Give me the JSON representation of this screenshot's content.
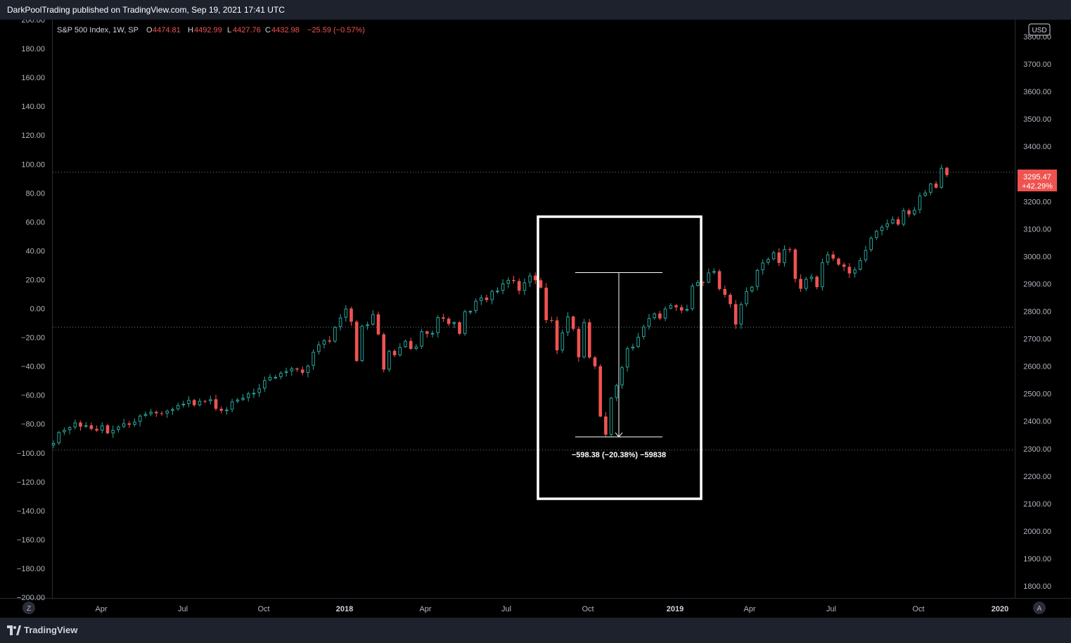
{
  "header": {
    "published": "DarkPoolTrading published on TradingView.com, Sep 19, 2021 17:41 UTC"
  },
  "footer": {
    "logo_text": "TradingView"
  },
  "legend": {
    "symbol": "S&P 500 Index, 1W, SP",
    "o_label": "O",
    "o_value": "4474.81",
    "h_label": "H",
    "h_value": "4492.99",
    "l_label": "L",
    "l_value": "4427.76",
    "c_label": "C",
    "c_value": "4432.98",
    "change": "−25.59 (−0.57%)"
  },
  "currency": "USD",
  "price_badge": {
    "price": "3295.47",
    "pct": "+42.29%"
  },
  "measure_label": "−598.38 (−20.38%) −59838",
  "scale_buttons": {
    "left": "Z",
    "right": "A"
  },
  "colors": {
    "up": "#26a69a",
    "down": "#ef5350",
    "background": "#000000",
    "panel": "#1e222d",
    "text": "#d1d4dc"
  },
  "chart_data": {
    "type": "candlestick",
    "title": "S&P 500 Index, 1W, SP",
    "left_axis": {
      "ticks": [
        "200.00",
        "180.00",
        "160.00",
        "140.00",
        "120.00",
        "100.00",
        "80.00",
        "60.00",
        "40.00",
        "20.00",
        "0.00",
        "−20.00",
        "−40.00",
        "−60.00",
        "−80.00",
        "−100.00",
        "−120.00",
        "−140.00",
        "−160.00",
        "−180.00",
        "−200.00"
      ],
      "range": [
        -200,
        200
      ]
    },
    "right_axis": {
      "ticks": [
        "3800.00",
        "3700.00",
        "3600.00",
        "3500.00",
        "3400.00",
        "3300.00",
        "3200.00",
        "3100.00",
        "3000.00",
        "2900.00",
        "2800.00",
        "2700.00",
        "2600.00",
        "2500.00",
        "2400.00",
        "2300.00",
        "2200.00",
        "2100.00",
        "2000.00",
        "1900.00",
        "1800.00"
      ],
      "range": [
        1740,
        3850
      ]
    },
    "x_ticks": [
      {
        "label": "Apr",
        "bold": false
      },
      {
        "label": "Jul",
        "bold": false
      },
      {
        "label": "Oct",
        "bold": false
      },
      {
        "label": "2018",
        "bold": true
      },
      {
        "label": "Apr",
        "bold": false
      },
      {
        "label": "Jul",
        "bold": false
      },
      {
        "label": "Oct",
        "bold": false
      },
      {
        "label": "2019",
        "bold": true
      },
      {
        "label": "Apr",
        "bold": false
      },
      {
        "label": "Jul",
        "bold": false
      },
      {
        "label": "Oct",
        "bold": false
      },
      {
        "label": "2020",
        "bold": true
      }
    ],
    "reference_lines": [
      3306,
      2742,
      2295
    ],
    "measure": {
      "high": 2941,
      "low": 2343
    },
    "closes": [
      2320,
      2360,
      2368,
      2378,
      2395,
      2380,
      2385,
      2372,
      2366,
      2385,
      2356,
      2368,
      2380,
      2392,
      2387,
      2398,
      2420,
      2426,
      2434,
      2429,
      2428,
      2438,
      2444,
      2458,
      2463,
      2477,
      2458,
      2474,
      2473,
      2480,
      2445,
      2438,
      2442,
      2472,
      2478,
      2485,
      2501,
      2503,
      2519,
      2549,
      2561,
      2561,
      2576,
      2582,
      2592,
      2588,
      2576,
      2602,
      2652,
      2679,
      2694,
      2690,
      2743,
      2777,
      2810,
      2762,
      2619,
      2747,
      2752,
      2789,
      2716,
      2588,
      2656,
      2640,
      2670,
      2692,
      2663,
      2672,
      2727,
      2718,
      2721,
      2778,
      2773,
      2754,
      2760,
      2718,
      2800,
      2801,
      2838,
      2850,
      2841,
      2874,
      2875,
      2901,
      2914,
      2910,
      2875,
      2905,
      2930,
      2913,
      2886,
      2768,
      2767,
      2658,
      2723,
      2781,
      2736,
      2633,
      2760,
      2632,
      2600,
      2417,
      2351,
      2485,
      2531,
      2596,
      2665,
      2671,
      2707,
      2744,
      2775,
      2792,
      2774,
      2810,
      2822,
      2815,
      2803,
      2808,
      2893,
      2906,
      2905,
      2941,
      2946,
      2881,
      2860,
      2826,
      2752,
      2826,
      2873,
      2889,
      2950,
      2977,
      2990,
      3014,
      2976,
      3026,
      3025,
      2918,
      2882,
      2918,
      2926,
      2888,
      2978,
      3007,
      2992,
      2970,
      2962,
      2938,
      2952,
      2986,
      3023,
      3067,
      3093,
      3107,
      3120,
      3135,
      3116,
      3167,
      3153,
      3169,
      3221,
      3232,
      3265,
      3250,
      3322,
      3296
    ]
  }
}
